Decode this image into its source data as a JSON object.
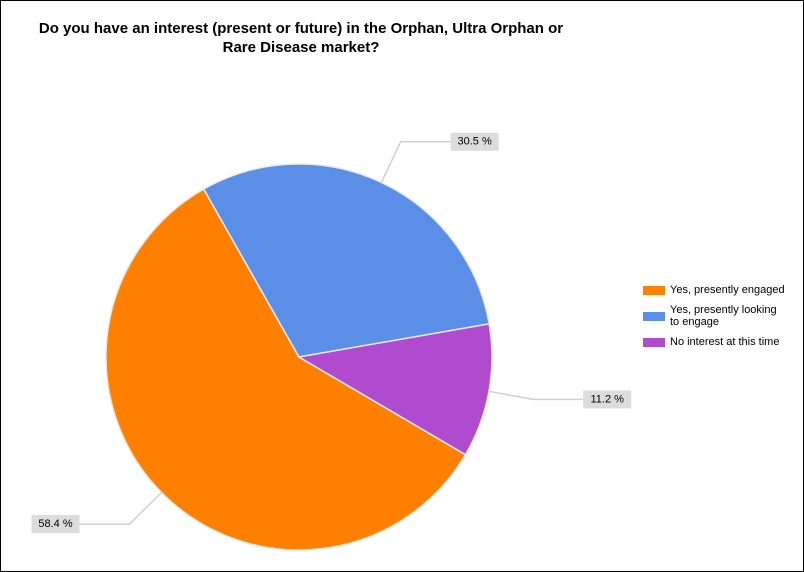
{
  "chart_data": {
    "type": "pie",
    "title": "Do you have an interest (present or future) in the Orphan, Ultra Orphan or Rare Disease market?",
    "categories": [
      "Yes, presently engaged",
      "Yes, presently looking to engage",
      "No interest at this time"
    ],
    "values": [
      58.4,
      30.5,
      11.2
    ],
    "value_labels": [
      "58.4 %",
      "30.5 %",
      "11.2 %"
    ],
    "colors": [
      "#ff8000",
      "#5b8ee6",
      "#b04acf"
    ],
    "legend": "right"
  }
}
